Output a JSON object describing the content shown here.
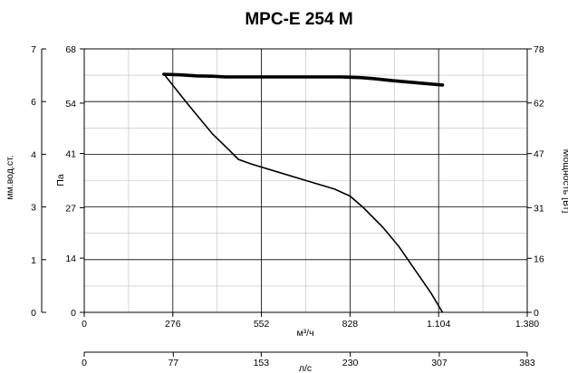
{
  "chart_data": {
    "type": "line",
    "title": "MPC-E 254 M",
    "x_primary": {
      "label": "м³/ч",
      "range": [
        0,
        1380
      ],
      "ticks": [
        0,
        276,
        552,
        828,
        1104,
        1380
      ],
      "tick_labels": [
        "0",
        "276",
        "552",
        "828",
        "1.104",
        "1.380"
      ]
    },
    "x_secondary": {
      "label": "л/с",
      "range": [
        0,
        383
      ],
      "ticks": [
        0,
        77,
        153,
        230,
        307,
        383
      ],
      "tick_labels": [
        "0",
        "77",
        "153",
        "230",
        "307",
        "383"
      ]
    },
    "y_left_outer": {
      "label": "мм.вод.ст.",
      "ticks": [
        0,
        1,
        3,
        4,
        6,
        7
      ],
      "tick_labels": [
        "0",
        "1",
        "3",
        "4",
        "6",
        "7"
      ]
    },
    "y_left_inner": {
      "label": "Па",
      "range": [
        0,
        68
      ],
      "ticks": [
        0,
        14,
        27,
        41,
        54,
        68
      ],
      "tick_labels": [
        "0",
        "14",
        "27",
        "41",
        "54",
        "68"
      ]
    },
    "y_right": {
      "label": "Мощность [Вт]",
      "range": [
        0,
        78
      ],
      "ticks": [
        0,
        16,
        31,
        47,
        62,
        78
      ],
      "tick_labels": [
        "0",
        "16",
        "31",
        "47",
        "62",
        "78"
      ]
    },
    "grid": true,
    "series": [
      {
        "axis": "pressure",
        "points": [
          [
            248,
            61.5
          ],
          [
            320,
            54
          ],
          [
            400,
            46
          ],
          [
            450,
            42
          ],
          [
            480,
            39.5
          ],
          [
            520,
            38.3
          ],
          [
            600,
            36.3
          ],
          [
            700,
            33.8
          ],
          [
            780,
            31.8
          ],
          [
            828,
            30
          ],
          [
            870,
            27
          ],
          [
            930,
            22
          ],
          [
            980,
            17
          ],
          [
            1030,
            11
          ],
          [
            1080,
            5
          ],
          [
            1116,
            0
          ]
        ]
      },
      {
        "axis": "power",
        "points": [
          [
            248,
            70.5
          ],
          [
            300,
            70.3
          ],
          [
            350,
            70
          ],
          [
            400,
            69.9
          ],
          [
            440,
            69.7
          ],
          [
            500,
            69.7
          ],
          [
            600,
            69.7
          ],
          [
            700,
            69.7
          ],
          [
            800,
            69.7
          ],
          [
            860,
            69.5
          ],
          [
            900,
            69.2
          ],
          [
            960,
            68.6
          ],
          [
            1020,
            68.1
          ],
          [
            1080,
            67.6
          ],
          [
            1116,
            67.3
          ]
        ]
      }
    ]
  }
}
